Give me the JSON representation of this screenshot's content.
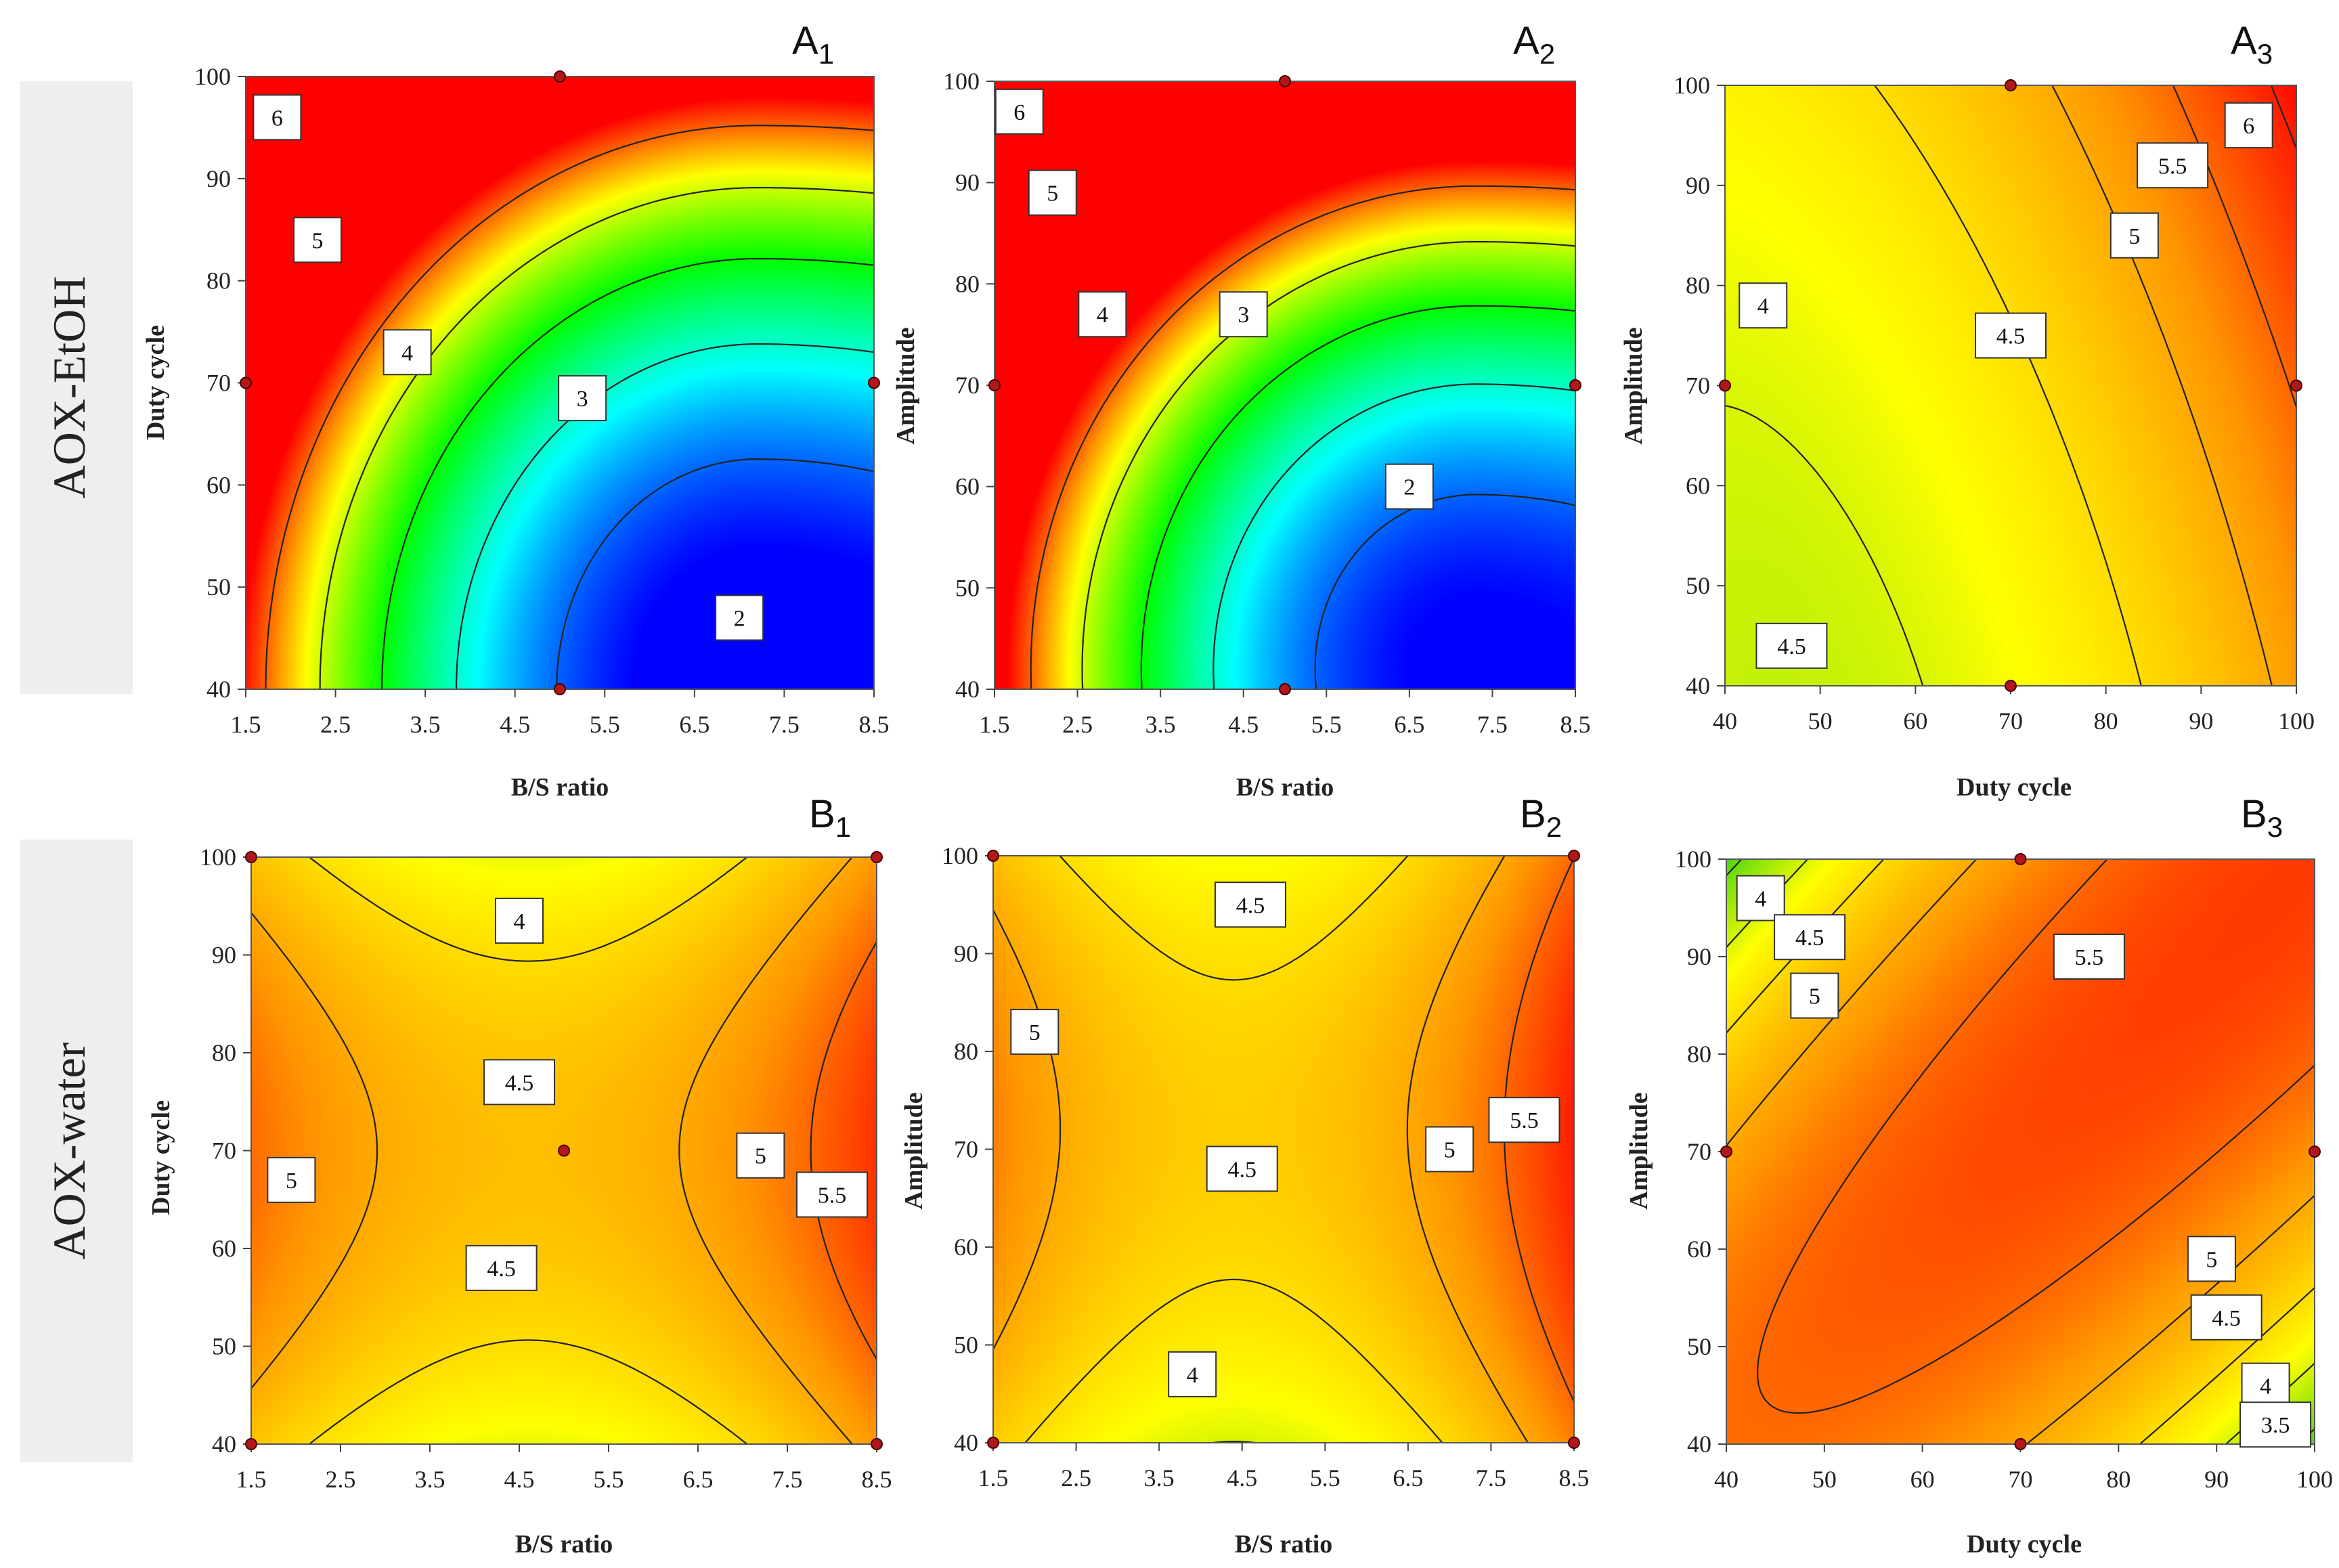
{
  "row_labels": [
    "AOX-EtOH",
    "AOX-water"
  ],
  "chart_data": [
    {
      "type": "heatmap",
      "title": "A",
      "title_sub": "1",
      "xlabel": "B/S ratio",
      "ylabel": "Duty cycle",
      "xlim": [
        1.5,
        8.5
      ],
      "ylim": [
        40,
        100
      ],
      "xticks": [
        "1.5",
        "2.5",
        "3.5",
        "4.5",
        "5.5",
        "6.5",
        "7.5",
        "8.5"
      ],
      "yticks": [
        "40",
        "50",
        "60",
        "70",
        "80",
        "90",
        "100"
      ],
      "colormap": "rainbow",
      "zrange": [
        1.5,
        6.5
      ],
      "surface": {
        "a": 1.2,
        "bx": -0.16,
        "cx": 7.2,
        "by": 0.00035,
        "cy": 40
      },
      "contours": [
        {
          "level": 6,
          "label": "6",
          "x": 1.85,
          "y": 96
        },
        {
          "level": 5,
          "label": "5",
          "x": 2.3,
          "y": 84
        },
        {
          "level": 4,
          "label": "4",
          "x": 3.3,
          "y": 73
        },
        {
          "level": 3,
          "label": "3",
          "x": 5.25,
          "y": 68.5
        },
        {
          "level": 2,
          "label": "2",
          "x": 7.0,
          "y": 47
        }
      ],
      "design_points": [
        [
          5,
          100
        ],
        [
          1.5,
          70
        ],
        [
          8.5,
          70
        ],
        [
          5,
          40
        ]
      ]
    },
    {
      "type": "heatmap",
      "title": "A",
      "title_sub": "2",
      "xlabel": "B/S ratio",
      "ylabel": "Amplitude",
      "xlim": [
        1.5,
        8.5
      ],
      "ylim": [
        40,
        100
      ],
      "xticks": [
        "1.5",
        "2.5",
        "3.5",
        "4.5",
        "5.5",
        "6.5",
        "7.5",
        "8.5"
      ],
      "yticks": [
        "40",
        "50",
        "60",
        "70",
        "80",
        "90",
        "100"
      ],
      "colormap": "rainbow",
      "zrange": [
        1.5,
        6.5
      ],
      "surface": {
        "a": 1.4,
        "bx": -0.16,
        "cx": 7.3,
        "by": 0.00045,
        "cy": 42
      },
      "contours": [
        {
          "level": 6,
          "label": "6",
          "x": 1.8,
          "y": 97
        },
        {
          "level": 5,
          "label": "5",
          "x": 2.2,
          "y": 89
        },
        {
          "level": 4,
          "label": "4",
          "x": 2.8,
          "y": 77
        },
        {
          "level": 3,
          "label": "3",
          "x": 4.5,
          "y": 77
        },
        {
          "level": 2,
          "label": "2",
          "x": 6.5,
          "y": 60
        }
      ],
      "design_points": [
        [
          5,
          100
        ],
        [
          1.5,
          70
        ],
        [
          8.5,
          70
        ],
        [
          5,
          40
        ]
      ]
    },
    {
      "type": "heatmap",
      "title": "A",
      "title_sub": "3",
      "xlabel": "Duty cycle",
      "ylabel": "Amplitude",
      "xlim": [
        40,
        100
      ],
      "ylim": [
        40,
        100
      ],
      "xticks": [
        "40",
        "50",
        "60",
        "70",
        "80",
        "90",
        "100"
      ],
      "yticks": [
        "40",
        "50",
        "60",
        "70",
        "80",
        "90",
        "100"
      ],
      "colormap": "heat",
      "zrange": [
        3.3,
        6.2
      ],
      "surface": {
        "base": 3.9,
        "ax": 0.0004,
        "cx": 45,
        "ay": 0.0001,
        "cy": 38,
        "axy": 0.00018
      },
      "contours": [
        {
          "level": 6,
          "label": "6",
          "x": 95,
          "y": 96
        },
        {
          "level": 5.5,
          "label": "5.5",
          "x": 87,
          "y": 92
        },
        {
          "level": 5,
          "label": "5",
          "x": 83,
          "y": 85
        },
        {
          "level": 4.5,
          "label": "4.5",
          "x": 70,
          "y": 75
        },
        {
          "level": 4,
          "label": "4",
          "x": 44,
          "y": 78
        },
        {
          "level": 4.5,
          "label": "4.5",
          "x": 47,
          "y": 44
        }
      ],
      "design_points": [
        [
          70,
          100
        ],
        [
          40,
          70
        ],
        [
          100,
          70
        ],
        [
          70,
          40
        ]
      ]
    },
    {
      "type": "heatmap",
      "title": "B",
      "title_sub": "1",
      "xlabel": "B/S ratio",
      "ylabel": "Duty cycle",
      "xlim": [
        1.5,
        8.5
      ],
      "ylim": [
        40,
        100
      ],
      "xticks": [
        "1.5",
        "2.5",
        "3.5",
        "4.5",
        "5.5",
        "6.5",
        "7.5",
        "8.5"
      ],
      "yticks": [
        "40",
        "50",
        "60",
        "70",
        "80",
        "90",
        "100"
      ],
      "colormap": "heat",
      "zrange": [
        3.3,
        6.2
      ],
      "surface": {
        "base": 4.8,
        "ax": 0.07,
        "cx": 4.6,
        "ay": 0.0005,
        "cy": 70
      },
      "contours": [
        {
          "level": 4,
          "label": "4",
          "x": 4.5,
          "y": 93.5
        },
        {
          "level": 4.5,
          "label": "4.5",
          "x": 4.5,
          "y": 77
        },
        {
          "level": 5,
          "label": "5",
          "x": 1.95,
          "y": 67
        },
        {
          "level": 4.5,
          "label": "4.5",
          "x": 4.3,
          "y": 58
        },
        {
          "level": 5,
          "label": "5",
          "x": 7.2,
          "y": 69.5
        },
        {
          "level": 5.5,
          "label": "5.5",
          "x": 8.0,
          "y": 65.5
        }
      ],
      "design_points": [
        [
          1.5,
          100
        ],
        [
          8.5,
          100
        ],
        [
          5,
          70
        ],
        [
          1.5,
          40
        ],
        [
          8.5,
          40
        ]
      ]
    },
    {
      "type": "heatmap",
      "title": "B",
      "title_sub": "2",
      "xlabel": "B/S ratio",
      "ylabel": "Amplitude",
      "xlim": [
        1.5,
        8.5
      ],
      "ylim": [
        40,
        100
      ],
      "xticks": [
        "1.5",
        "2.5",
        "3.5",
        "4.5",
        "5.5",
        "6.5",
        "7.5",
        "8.5"
      ],
      "yticks": [
        "40",
        "50",
        "60",
        "70",
        "80",
        "90",
        "100"
      ],
      "colormap": "heat",
      "zrange": [
        3.3,
        6.2
      ],
      "surface": {
        "base": 4.65,
        "ax": 0.08,
        "cx": 4.4,
        "ay": 0.0004,
        "cy": 72
      },
      "contours": [
        {
          "level": 4.5,
          "label": "4.5",
          "x": 4.6,
          "y": 95
        },
        {
          "level": 5,
          "label": "5",
          "x": 2.0,
          "y": 82
        },
        {
          "level": 4.5,
          "label": "4.5",
          "x": 4.5,
          "y": 68
        },
        {
          "level": 4,
          "label": "4",
          "x": 3.9,
          "y": 47
        },
        {
          "level": 5,
          "label": "5",
          "x": 7.0,
          "y": 70
        },
        {
          "level": 5.5,
          "label": "5.5",
          "x": 7.9,
          "y": 73
        }
      ],
      "design_points": [
        [
          1.5,
          100
        ],
        [
          8.5,
          100
        ],
        [
          1.5,
          40
        ],
        [
          8.5,
          40
        ]
      ]
    },
    {
      "type": "heatmap",
      "title": "B",
      "title_sub": "3",
      "xlabel": "Duty cycle",
      "ylabel": "Amplitude",
      "xlim": [
        40,
        100
      ],
      "ylim": [
        40,
        100
      ],
      "xticks": [
        "40",
        "50",
        "60",
        "70",
        "80",
        "90",
        "100"
      ],
      "yticks": [
        "40",
        "50",
        "60",
        "70",
        "80",
        "90",
        "100"
      ],
      "colormap": "heat",
      "zrange": [
        3.3,
        6.2
      ],
      "surface": {
        "base": 5.8,
        "ad": 0.0013,
        "c": 0,
        "as": 5e-05,
        "cs": 140
      },
      "contours": [
        {
          "level": 4,
          "label": "4",
          "x": 43.5,
          "y": 96
        },
        {
          "level": 4.5,
          "label": "4.5",
          "x": 48.5,
          "y": 92
        },
        {
          "level": 5,
          "label": "5",
          "x": 49,
          "y": 86
        },
        {
          "level": 5.5,
          "label": "5.5",
          "x": 77,
          "y": 90
        },
        {
          "level": 5,
          "label": "5",
          "x": 89.5,
          "y": 59
        },
        {
          "level": 4.5,
          "label": "4.5",
          "x": 91,
          "y": 53
        },
        {
          "level": 4,
          "label": "4",
          "x": 95,
          "y": 46
        },
        {
          "level": 3.5,
          "label": "3.5",
          "x": 96,
          "y": 42
        }
      ],
      "design_points": [
        [
          70,
          100
        ],
        [
          40,
          70
        ],
        [
          100,
          70
        ],
        [
          70,
          40
        ]
      ]
    }
  ]
}
